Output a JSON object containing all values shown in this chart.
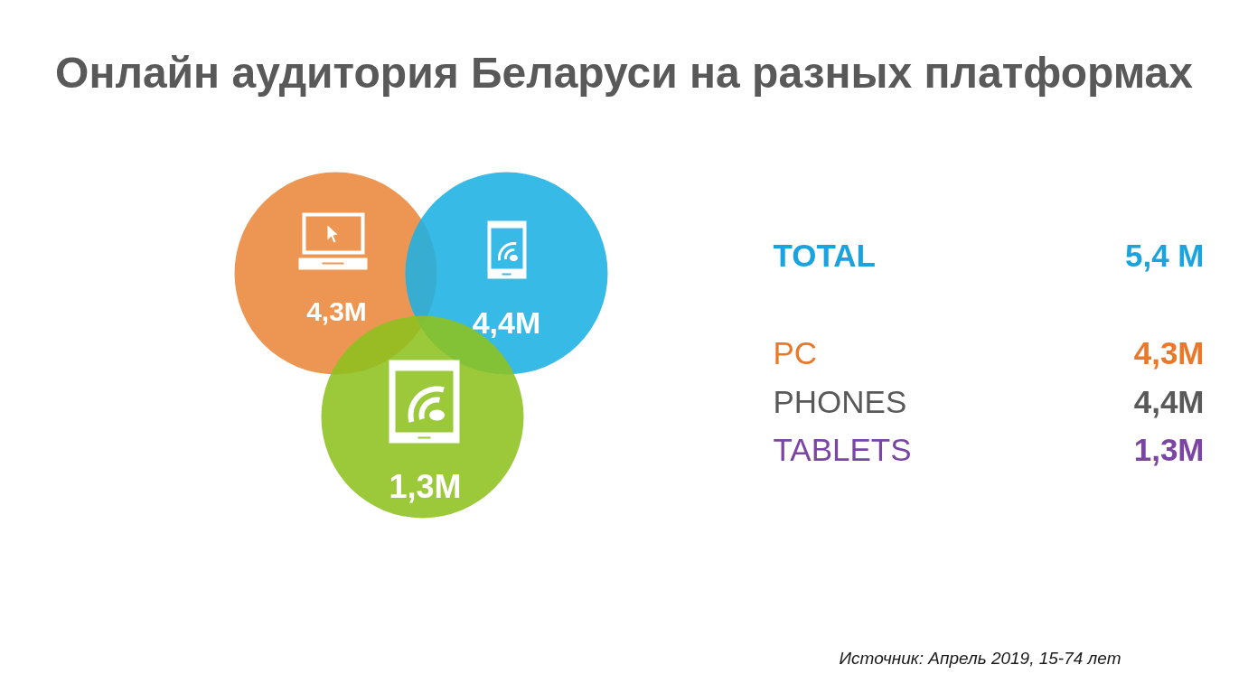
{
  "chart_data": {
    "type": "other",
    "title": "Онлайн аудитория Беларуси на разных платформах",
    "categories": [
      "PC",
      "PHONES",
      "TABLETS"
    ],
    "values": [
      4.3,
      4.4,
      1.3
    ],
    "value_labels": [
      "4,3M",
      "4,4M",
      "1,3M"
    ],
    "colors": [
      "#eb873b",
      "#1cb0e3",
      "#8dc21f"
    ],
    "annotations": [
      "TOTAL",
      "5,4 M",
      "Источник: Апрель 2019, 15-74 лет"
    ]
  }
}
